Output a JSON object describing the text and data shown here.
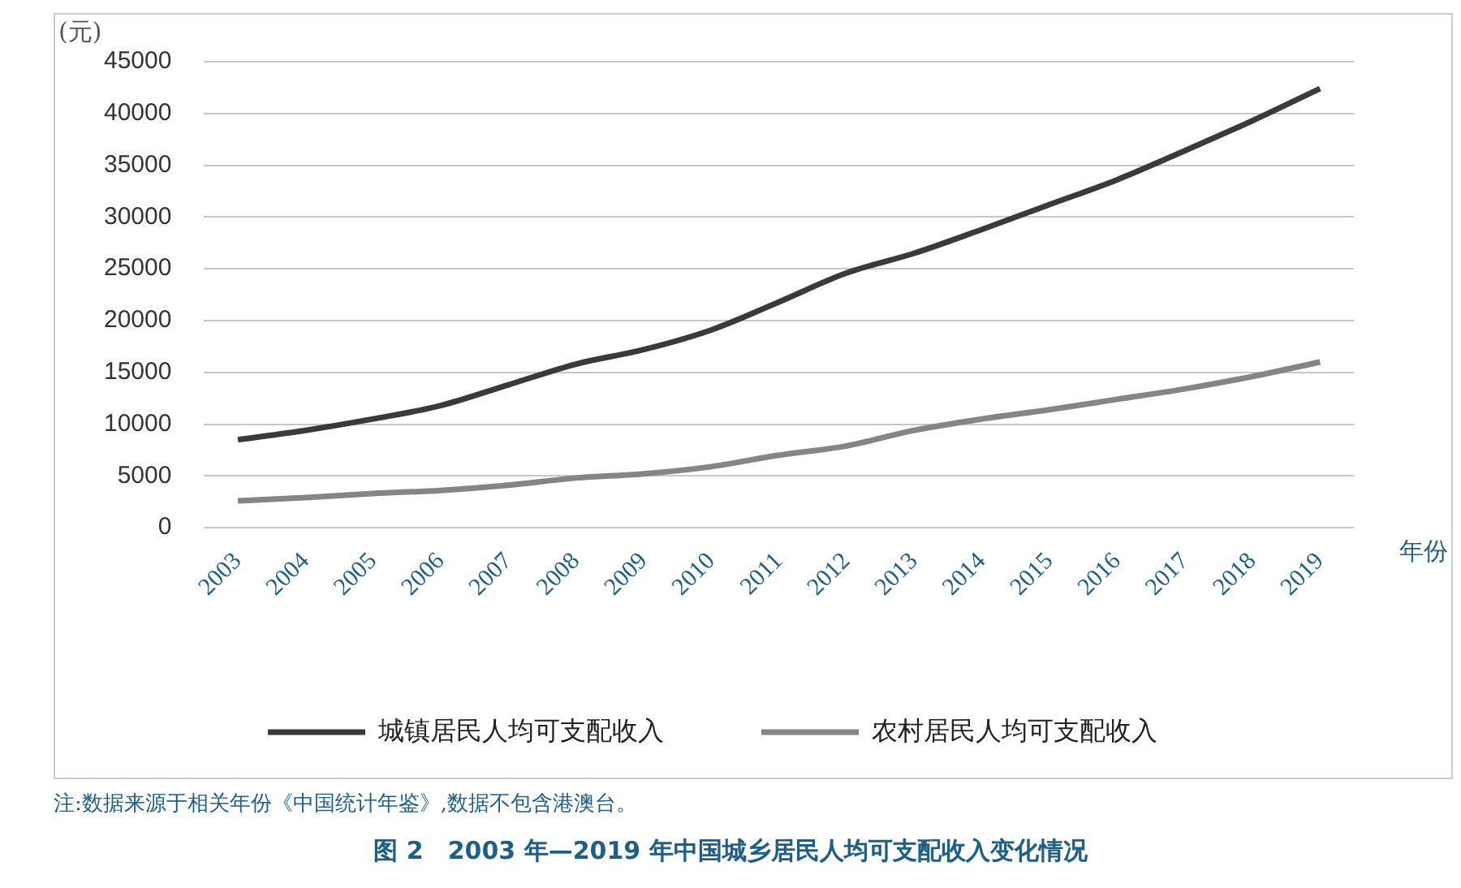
{
  "chart_data": {
    "type": "line",
    "title": "图 2　2003 年—2019 年中国城乡居民人均可支配收入变化情况",
    "ylabel": "(元)",
    "xlabel": "年份",
    "annotations": [
      "注:数据来源于相关年份《中国统计年鉴》,数据不包含港澳台。"
    ],
    "categories": [
      "2003",
      "2004",
      "2005",
      "2006",
      "2007",
      "2008",
      "2009",
      "2010",
      "2011",
      "2012",
      "2013",
      "2014",
      "2015",
      "2016",
      "2017",
      "2018",
      "2019"
    ],
    "series": [
      {
        "name": "城镇居民人均可支配收入",
        "color": "#3a3a3a",
        "values": [
          8500,
          9400,
          10500,
          11800,
          13800,
          15800,
          17200,
          19100,
          21800,
          24600,
          26500,
          28800,
          31200,
          33600,
          36400,
          39300,
          42400
        ]
      },
      {
        "name": "农村居民人均可支配收入",
        "color": "#858585",
        "values": [
          2600,
          2900,
          3300,
          3600,
          4100,
          4800,
          5200,
          5900,
          7000,
          7900,
          9400,
          10500,
          11400,
          12400,
          13400,
          14600,
          16000
        ]
      }
    ],
    "ylim": [
      0,
      45000
    ],
    "yticks": [
      0,
      5000,
      10000,
      15000,
      20000,
      25000,
      30000,
      35000,
      40000,
      45000
    ],
    "grid": "y",
    "legend": "bottom",
    "marker": "none",
    "line_style": "solid"
  }
}
